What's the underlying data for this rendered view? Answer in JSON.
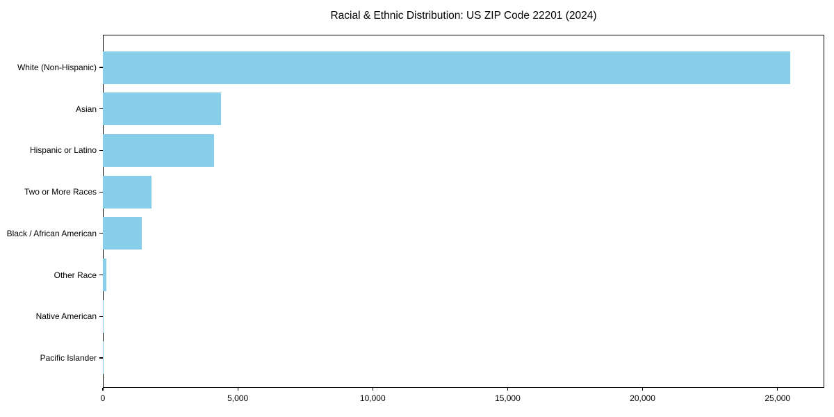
{
  "title": "Racial & Ethnic Distribution: US ZIP Code 22201 (2024)",
  "chart_data": {
    "type": "bar",
    "orientation": "horizontal",
    "title": "Racial & Ethnic Distribution: US ZIP Code 22201 (2024)",
    "xlabel": "",
    "ylabel": "",
    "categories": [
      "White (Non-Hispanic)",
      "Asian",
      "Hispanic or Latino",
      "Two or More Races",
      "Black / African American",
      "Other Race",
      "Native American",
      "Pacific Islander"
    ],
    "values": [
      25460,
      4385,
      4125,
      1810,
      1450,
      135,
      30,
      10
    ],
    "xlim": [
      0,
      26733
    ],
    "x_ticks": [
      0,
      5000,
      10000,
      15000,
      20000,
      25000
    ],
    "x_tick_labels": [
      "0",
      "5,000",
      "10,000",
      "15,000",
      "20,000",
      "25,000"
    ],
    "bar_color": "#87CEEB",
    "grid": false,
    "legend": false
  }
}
